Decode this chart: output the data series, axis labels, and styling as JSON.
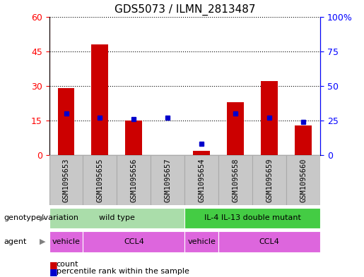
{
  "title": "GDS5073 / ILMN_2813487",
  "samples": [
    "GSM1095653",
    "GSM1095655",
    "GSM1095656",
    "GSM1095657",
    "GSM1095654",
    "GSM1095658",
    "GSM1095659",
    "GSM1095660"
  ],
  "counts": [
    29,
    48,
    15,
    0,
    2,
    23,
    32,
    13
  ],
  "percentile_ranks": [
    30,
    27,
    26,
    27,
    8,
    30,
    27,
    24
  ],
  "ylim_left": [
    0,
    60
  ],
  "ylim_right": [
    0,
    100
  ],
  "left_ticks": [
    0,
    15,
    30,
    45,
    60
  ],
  "right_ticks": [
    0,
    25,
    50,
    75,
    100
  ],
  "right_tick_labels": [
    "0",
    "25",
    "50",
    "75",
    "100%"
  ],
  "bar_color": "#cc0000",
  "dot_color": "#0000cc",
  "bg_color": "#c8c8c8",
  "plot_bg": "#ffffff",
  "geno_color_1": "#aaddaa",
  "geno_color_2": "#44cc44",
  "agent_color": "#dd66dd",
  "geno_groups": [
    {
      "label": "wild type",
      "start": 0,
      "end": 4,
      "color": "#aaddaa"
    },
    {
      "label": "IL-4 IL-13 double mutant",
      "start": 4,
      "end": 8,
      "color": "#44cc44"
    }
  ],
  "agent_groups": [
    {
      "label": "vehicle",
      "start": 0,
      "end": 1
    },
    {
      "label": "CCL4",
      "start": 1,
      "end": 4
    },
    {
      "label": "vehicle",
      "start": 4,
      "end": 5
    },
    {
      "label": "CCL4",
      "start": 5,
      "end": 8
    }
  ]
}
